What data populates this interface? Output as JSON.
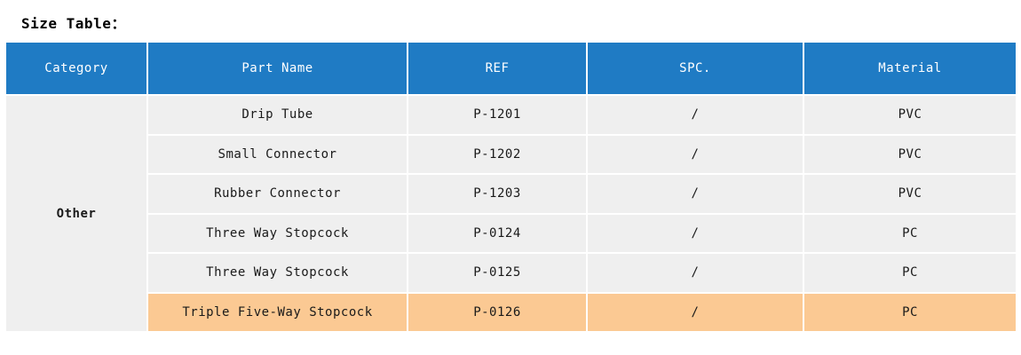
{
  "title": "Size Table：",
  "table": {
    "columns": [
      {
        "key": "category",
        "label": "Category"
      },
      {
        "key": "part_name",
        "label": "Part Name"
      },
      {
        "key": "ref",
        "label": "REF"
      },
      {
        "key": "spc",
        "label": "SPC."
      },
      {
        "key": "material",
        "label": "Material"
      }
    ],
    "category": "Other",
    "rows": [
      {
        "part_name": "Drip Tube",
        "ref": "P-1201",
        "spc": "/",
        "material": "PVC",
        "highlighted": false
      },
      {
        "part_name": "Small Connector",
        "ref": "P-1202",
        "spc": "/",
        "material": "PVC",
        "highlighted": false
      },
      {
        "part_name": "Rubber Connector",
        "ref": "P-1203",
        "spc": "/",
        "material": "PVC",
        "highlighted": false
      },
      {
        "part_name": "Three Way Stopcock",
        "ref": "P-0124",
        "spc": "/",
        "material": "PC",
        "highlighted": false
      },
      {
        "part_name": "Three Way Stopcock",
        "ref": "P-0125",
        "spc": "/",
        "material": "PC",
        "highlighted": false
      },
      {
        "part_name": "Triple Five-Way Stopcock",
        "ref": "P-0126",
        "spc": "/",
        "material": "PC",
        "highlighted": true
      }
    ],
    "colors": {
      "header_bg": "#1F7BC4",
      "header_text": "#FFFFFF",
      "row_bg": "#EFEFEF",
      "highlight_bg": "#FBC993",
      "body_text": "#1A1A1A",
      "gridline": "#FFFFFF"
    }
  }
}
